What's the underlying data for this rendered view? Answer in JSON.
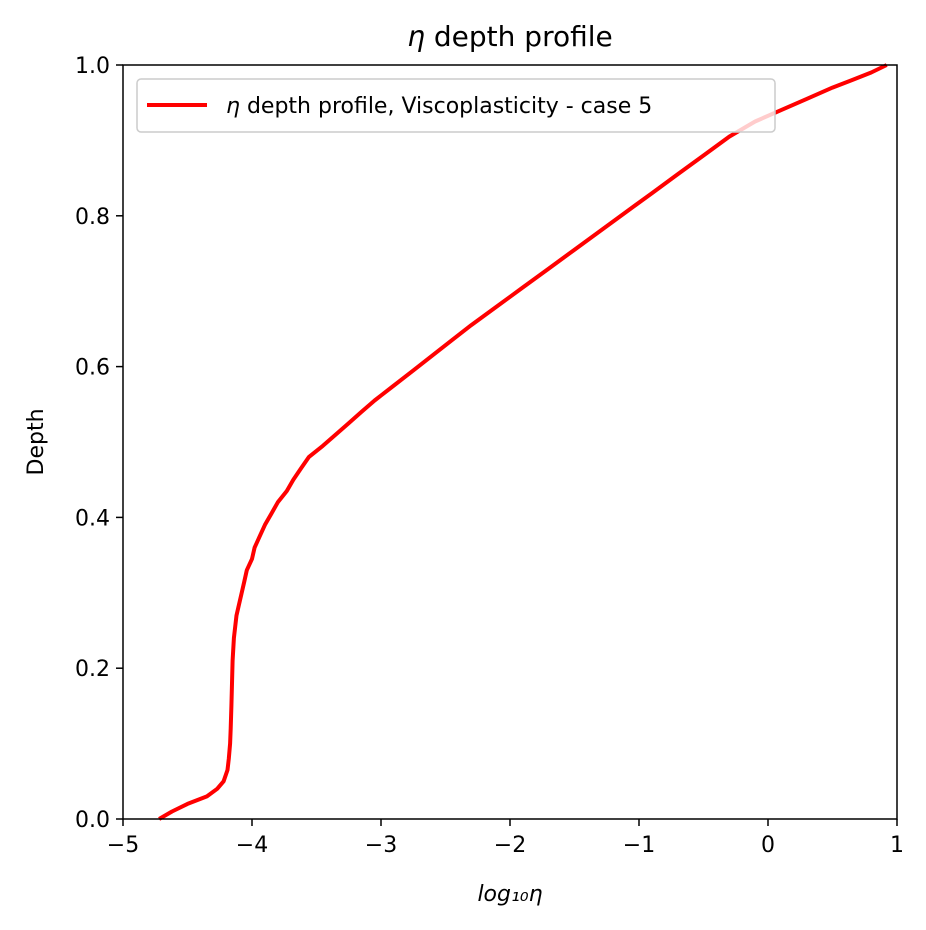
{
  "chart_data": {
    "type": "line",
    "title_symbol": "η",
    "title_rest": " depth profile",
    "xlabel": "log₁₀η",
    "ylabel": "Depth",
    "xlim": [
      -5,
      1
    ],
    "ylim": [
      0,
      1
    ],
    "xticks": [
      -5,
      -4,
      -3,
      -2,
      -1,
      0,
      1
    ],
    "xtick_labels": [
      "−5",
      "−4",
      "−3",
      "−2",
      "−1",
      "0",
      "1"
    ],
    "yticks": [
      0,
      0.2,
      0.4,
      0.6,
      0.8,
      1.0
    ],
    "ytick_labels": [
      "0.0",
      "0.2",
      "0.4",
      "0.6",
      "0.8",
      "1.0"
    ],
    "grid": false,
    "legend_position": "top-left",
    "series": [
      {
        "name_symbol": "η",
        "name_rest": " depth profile, Viscoplasticity - case 5",
        "color": "#ff0000",
        "x": [
          -4.72,
          -4.62,
          -4.5,
          -4.35,
          -4.27,
          -4.22,
          -4.19,
          -4.18,
          -4.17,
          -4.165,
          -4.16,
          -4.155,
          -4.15,
          -4.14,
          -4.13,
          -4.12,
          -4.1,
          -4.08,
          -4.06,
          -4.04,
          -4.0,
          -3.98,
          -3.94,
          -3.9,
          -3.85,
          -3.8,
          -3.73,
          -3.68,
          -3.62,
          -3.56,
          -3.45,
          -3.35,
          -3.25,
          -3.15,
          -3.05,
          -2.9,
          -2.75,
          -2.6,
          -2.45,
          -2.3,
          -2.1,
          -1.9,
          -1.7,
          -1.5,
          -1.3,
          -1.1,
          -0.9,
          -0.7,
          -0.5,
          -0.3,
          -0.1,
          0.1,
          0.3,
          0.5,
          0.65,
          0.8,
          0.92
        ],
        "y": [
          0.0,
          0.01,
          0.02,
          0.03,
          0.04,
          0.05,
          0.065,
          0.08,
          0.1,
          0.12,
          0.15,
          0.18,
          0.21,
          0.24,
          0.255,
          0.27,
          0.285,
          0.3,
          0.315,
          0.33,
          0.345,
          0.36,
          0.375,
          0.39,
          0.405,
          0.42,
          0.435,
          0.45,
          0.465,
          0.48,
          0.495,
          0.51,
          0.525,
          0.54,
          0.555,
          0.575,
          0.595,
          0.615,
          0.635,
          0.655,
          0.68,
          0.705,
          0.73,
          0.755,
          0.78,
          0.805,
          0.83,
          0.855,
          0.88,
          0.905,
          0.925,
          0.94,
          0.955,
          0.97,
          0.98,
          0.99,
          1.0
        ]
      }
    ]
  }
}
